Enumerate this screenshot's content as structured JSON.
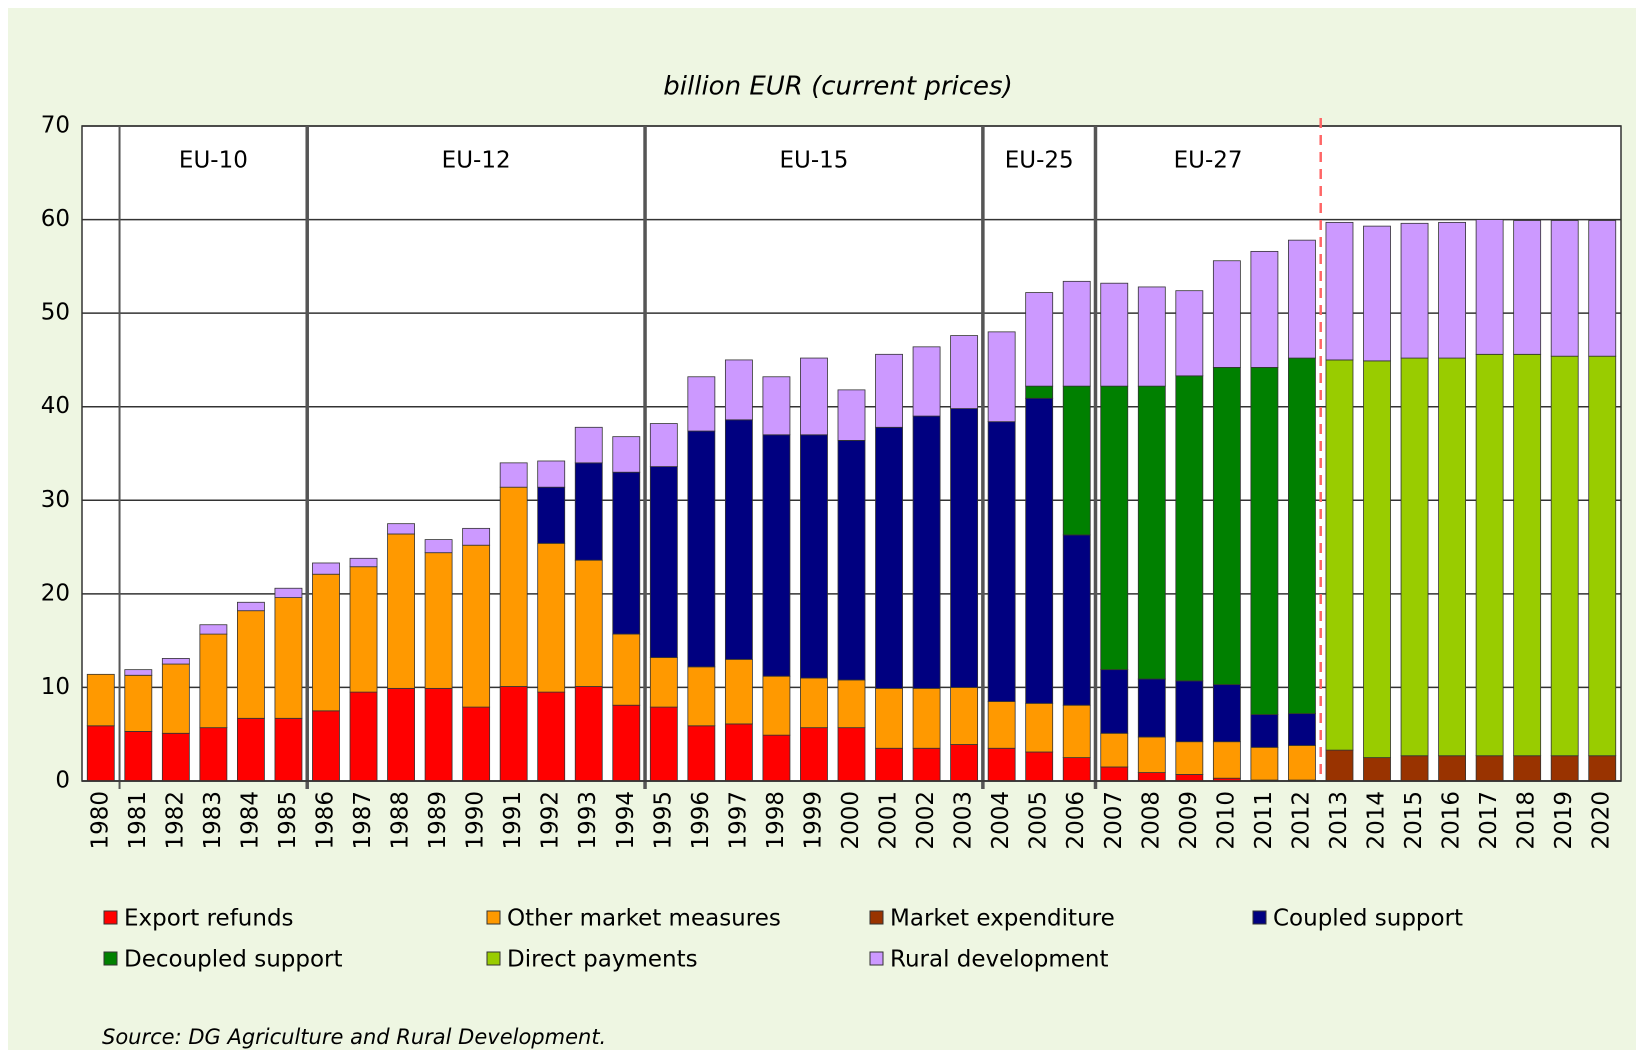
{
  "chart_data": {
    "type": "stacked_bar",
    "title": "billion EUR (current prices)",
    "source": "Source: DG Agriculture and Rural Development.",
    "categories": [
      "1980",
      "1981",
      "1982",
      "1983",
      "1984",
      "1985",
      "1986",
      "1987",
      "1988",
      "1989",
      "1990",
      "1991",
      "1992",
      "1993",
      "1994",
      "1995",
      "1996",
      "1997",
      "1998",
      "1999",
      "2000",
      "2001",
      "2002",
      "2003",
      "2004",
      "2005",
      "2006",
      "2007",
      "2008",
      "2009",
      "2010",
      "2011",
      "2012",
      "2013",
      "2014",
      "2015",
      "2016",
      "2017",
      "2018",
      "2019",
      "2020"
    ],
    "series": [
      {
        "name": "Export refunds",
        "color": "#ff0000",
        "values": [
          5.9,
          5.3,
          5.1,
          5.7,
          6.7,
          6.7,
          7.5,
          9.5,
          9.9,
          9.9,
          7.9,
          10.1,
          9.5,
          10.1,
          8.1,
          7.9,
          5.9,
          6.1,
          4.9,
          5.7,
          5.7,
          3.5,
          3.5,
          3.9,
          3.5,
          3.1,
          2.5,
          1.5,
          0.9,
          0.7,
          0.3,
          0.1,
          0.1,
          null,
          null,
          null,
          null,
          null,
          null,
          null,
          null
        ]
      },
      {
        "name": "Other market measures",
        "color": "#ff9900",
        "values": [
          5.5,
          6.0,
          7.4,
          10.0,
          11.5,
          12.9,
          14.6,
          13.4,
          16.5,
          14.5,
          17.3,
          21.3,
          15.9,
          13.5,
          7.6,
          5.3,
          6.3,
          6.9,
          6.3,
          5.3,
          5.1,
          6.4,
          6.4,
          6.1,
          5.0,
          5.2,
          5.6,
          3.6,
          3.8,
          3.5,
          3.9,
          3.5,
          3.7,
          null,
          null,
          null,
          null,
          null,
          null,
          null,
          null
        ]
      },
      {
        "name": "Market expenditure",
        "color": "#993300",
        "values": [
          null,
          null,
          null,
          null,
          null,
          null,
          null,
          null,
          null,
          null,
          null,
          null,
          null,
          null,
          null,
          null,
          null,
          null,
          null,
          null,
          null,
          null,
          null,
          null,
          null,
          null,
          null,
          null,
          null,
          null,
          null,
          null,
          null,
          3.3,
          2.5,
          2.7,
          2.7,
          2.7,
          2.7,
          2.7,
          2.7
        ]
      },
      {
        "name": "Coupled support",
        "color": "#000080",
        "values": [
          null,
          null,
          null,
          null,
          null,
          null,
          null,
          null,
          null,
          null,
          null,
          null,
          6.0,
          10.4,
          17.3,
          20.4,
          25.2,
          25.6,
          25.8,
          26.0,
          25.6,
          27.9,
          29.1,
          29.8,
          29.9,
          32.6,
          18.2,
          6.8,
          6.2,
          6.5,
          6.1,
          3.5,
          3.4,
          null,
          null,
          null,
          null,
          null,
          null,
          null,
          null
        ]
      },
      {
        "name": "Decoupled support",
        "color": "#008000",
        "values": [
          null,
          null,
          null,
          null,
          null,
          null,
          null,
          null,
          null,
          null,
          null,
          null,
          null,
          null,
          null,
          null,
          null,
          null,
          null,
          null,
          null,
          null,
          null,
          null,
          null,
          1.3,
          15.9,
          30.3,
          31.3,
          32.6,
          33.9,
          37.1,
          38.0,
          null,
          null,
          null,
          null,
          null,
          null,
          null,
          null
        ]
      },
      {
        "name": "Direct payments",
        "color": "#99cc00",
        "values": [
          null,
          null,
          null,
          null,
          null,
          null,
          null,
          null,
          null,
          null,
          null,
          null,
          null,
          null,
          null,
          null,
          null,
          null,
          null,
          null,
          null,
          null,
          null,
          null,
          null,
          null,
          null,
          null,
          null,
          null,
          null,
          null,
          null,
          41.7,
          42.4,
          42.5,
          42.5,
          42.9,
          42.9,
          42.7,
          42.7
        ]
      },
      {
        "name": "Rural development",
        "color": "#cc99ff",
        "values": [
          null,
          0.6,
          0.6,
          1.0,
          0.9,
          1.0,
          1.2,
          0.9,
          1.1,
          1.4,
          1.8,
          2.6,
          2.8,
          3.8,
          3.8,
          4.6,
          5.8,
          6.4,
          6.2,
          8.2,
          5.4,
          7.8,
          7.4,
          7.8,
          9.6,
          10.0,
          11.2,
          11.0,
          10.6,
          9.1,
          11.4,
          12.4,
          12.6,
          14.7,
          14.4,
          14.4,
          14.5,
          14.4,
          14.3,
          14.5,
          14.5
        ]
      }
    ],
    "periods": [
      {
        "label": "EU-10",
        "start": "1981"
      },
      {
        "label": "EU-12",
        "start": "1986"
      },
      {
        "label": "EU-15",
        "start": "1995"
      },
      {
        "label": "EU-25",
        "start": "2004"
      },
      {
        "label": "EU-27",
        "start": "2007"
      }
    ],
    "projection_start": "2013",
    "ylim": [
      0,
      70
    ],
    "yticks": [
      0,
      10,
      20,
      30,
      40,
      50,
      60,
      70
    ],
    "grid": true
  }
}
